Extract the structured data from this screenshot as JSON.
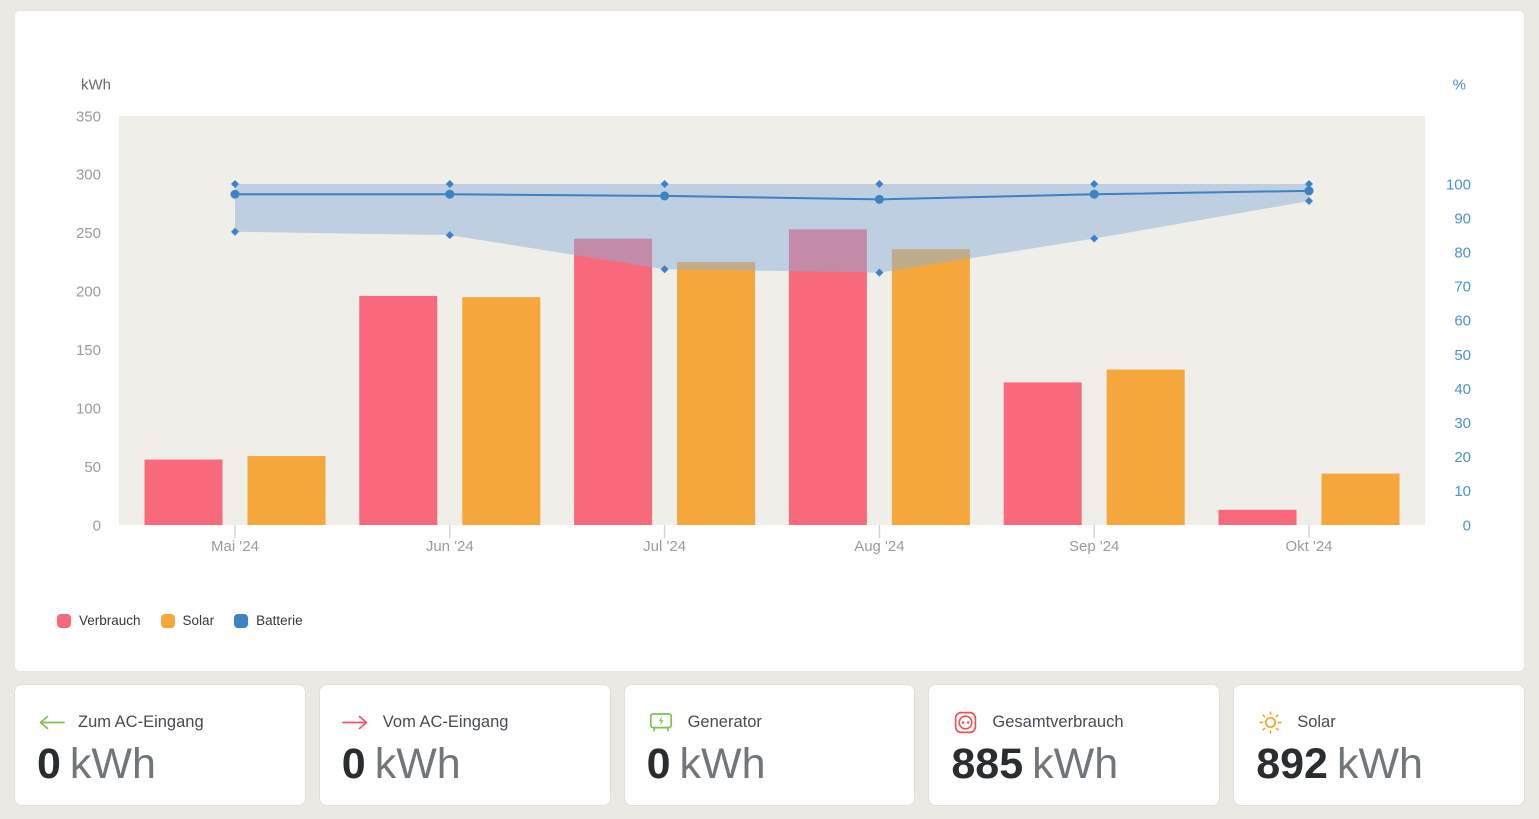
{
  "chart": {
    "legend": [
      {
        "label": "Verbrauch",
        "color": "#F8697B"
      },
      {
        "label": "Solar",
        "color": "#F5A73C"
      },
      {
        "label": "Batterie",
        "color": "#3C82C4"
      }
    ],
    "chart_data": {
      "type": "bar+line",
      "categories": [
        "Mai '24",
        "Jun '24",
        "Jul '24",
        "Aug '24",
        "Sep '24",
        "Okt '24"
      ],
      "series": [
        {
          "name": "Verbrauch",
          "type": "bar",
          "axis": "left",
          "unit": "kWh",
          "color": "#F8697B",
          "values": [
            56,
            196,
            245,
            253,
            122,
            13
          ]
        },
        {
          "name": "Solar",
          "type": "bar",
          "axis": "left",
          "unit": "kWh",
          "color": "#F5A73C",
          "values": [
            59,
            195,
            225,
            236,
            133,
            44
          ]
        },
        {
          "name": "Batterie",
          "type": "line-band",
          "axis": "right",
          "unit": "%",
          "color": "#3C82C4",
          "band_fill": "#8CAFD7",
          "band_opacity": 0.5,
          "avg": [
            97,
            97,
            96.5,
            95.5,
            97,
            98
          ],
          "max": [
            100,
            100,
            100,
            100,
            100,
            100
          ],
          "min": [
            86,
            85,
            75,
            74,
            84,
            95
          ]
        }
      ],
      "left_axis": {
        "title": "kWh",
        "min": 0,
        "max": 350,
        "step": 50,
        "label_color": "#9B9B9B",
        "title_color": "#6B6B6B"
      },
      "right_axis": {
        "title": "%",
        "min": 0,
        "max": 100,
        "step": 10,
        "label_color": "#4A90D9",
        "title_color": "#4A90D9"
      },
      "x_axis": {
        "label_color": "#9B9B9B",
        "tick_color": "#C8D8E9"
      },
      "plot_background": "#EFEEE9",
      "legend_position": "bottom-left",
      "grid": false
    }
  },
  "cards": [
    {
      "label": "Zum AC-Eingang",
      "value": "0",
      "unit": "kWh",
      "icon": "arrow-left-icon",
      "icon_color": "#7CC24F"
    },
    {
      "label": "Vom AC-Eingang",
      "value": "0",
      "unit": "kWh",
      "icon": "arrow-right-icon",
      "icon_color": "#F2536A"
    },
    {
      "label": "Generator",
      "value": "0",
      "unit": "kWh",
      "icon": "generator-icon",
      "icon_color": "#7CC24F"
    },
    {
      "label": "Gesamtverbrauch",
      "value": "885",
      "unit": "kWh",
      "icon": "socket-icon",
      "icon_color": "#F25050"
    },
    {
      "label": "Solar",
      "value": "892",
      "unit": "kWh",
      "icon": "sun-icon",
      "icon_color": "#F5A623"
    }
  ]
}
